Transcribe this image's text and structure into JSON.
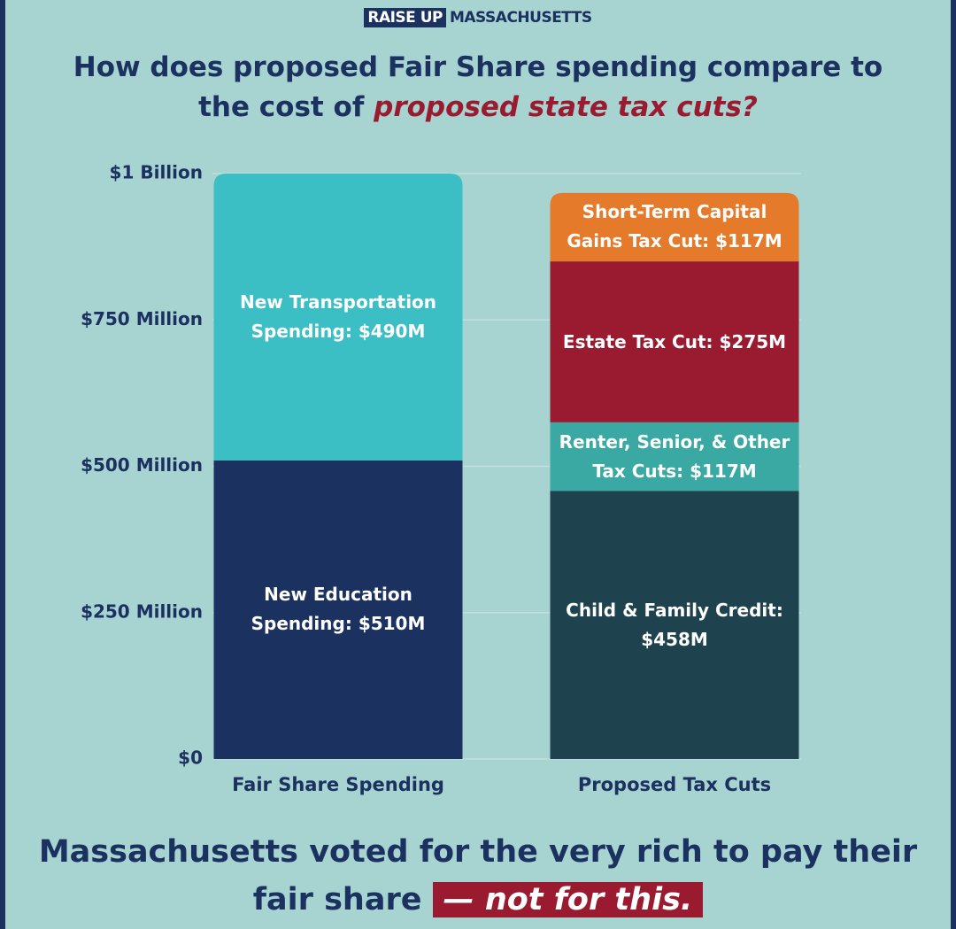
{
  "header": {
    "brand": [
      "RAISE UP",
      "MASSACHUSETTS"
    ]
  },
  "chart_data": {
    "type": "stacked_bar",
    "title": "How does proposed Fair Share spending compare to the cost of",
    "title_highlight": "proposed state tax cuts?",
    "categories": [
      "Fair Share Spending",
      "Proposed Tax Cuts"
    ],
    "series": [
      {
        "name": "New Education Spending:",
        "color": "#1b3160",
        "values": [
          510,
          null
        ],
        "value_labels": [
          "$510M",
          null
        ]
      },
      {
        "name": "New Transportation Spending:",
        "color": "#3bbfc4",
        "values": [
          490,
          null
        ],
        "value_labels": [
          "$490M",
          null
        ]
      },
      {
        "name": "Child & Family Credit:",
        "color": "#1e434e",
        "values": [
          null,
          458
        ],
        "value_labels": [
          null,
          "$458M"
        ]
      },
      {
        "name": "Renter, Senior, & Other Tax Cuts:",
        "color": "#3aa9a3",
        "values": [
          null,
          117
        ],
        "value_labels": [
          null,
          "$117M"
        ]
      },
      {
        "name": "Estate Tax Cut:",
        "color": "#9a1b30",
        "values": [
          null,
          275
        ],
        "value_labels": [
          null,
          "$275M"
        ]
      },
      {
        "name": "Short-Term Capital Gains Tax Cut:",
        "color": "#e57a2a",
        "values": [
          null,
          117
        ],
        "value_labels": [
          null,
          "$117M"
        ]
      }
    ],
    "ylim": [
      0,
      1000
    ],
    "yticks": [
      {
        "value": 0,
        "label": "$0"
      },
      {
        "value": 250,
        "label": "$250 Million"
      },
      {
        "value": 500,
        "label": "$500 Million"
      },
      {
        "value": 750,
        "label": "$750 Million"
      },
      {
        "value": 1000,
        "label": "$1 Billion"
      }
    ],
    "grid": true,
    "footer": "Massachusetts voted for the very rich to pay their fair share",
    "footer_highlight": "— not for this."
  }
}
